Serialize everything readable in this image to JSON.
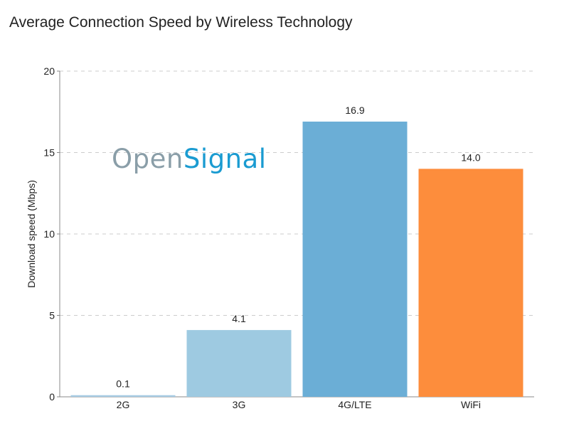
{
  "chart_data": {
    "type": "bar",
    "title": "Average Connection Speed by Wireless Technology",
    "xlabel": "",
    "ylabel": "Download speed (Mbps)",
    "categories": [
      "2G",
      "3G",
      "4G/LTE",
      "WiFi"
    ],
    "values": [
      0.1,
      4.1,
      16.9,
      14.0
    ],
    "value_labels": [
      "0.1",
      "4.1",
      "16.9",
      "14.0"
    ],
    "colors": [
      "#a6cbe3",
      "#9ecae1",
      "#6baed6",
      "#fd8d3c"
    ],
    "ylim": [
      0,
      20
    ],
    "yticks": [
      0,
      5,
      10,
      15,
      20
    ],
    "ytick_labels": [
      "0",
      "5",
      "10",
      "15",
      "20"
    ],
    "grid": true,
    "legend": "none"
  },
  "watermark": {
    "part1": "Open",
    "part2": "Signal",
    "color1": "#8a9ea8",
    "color2": "#1a9bd1"
  }
}
